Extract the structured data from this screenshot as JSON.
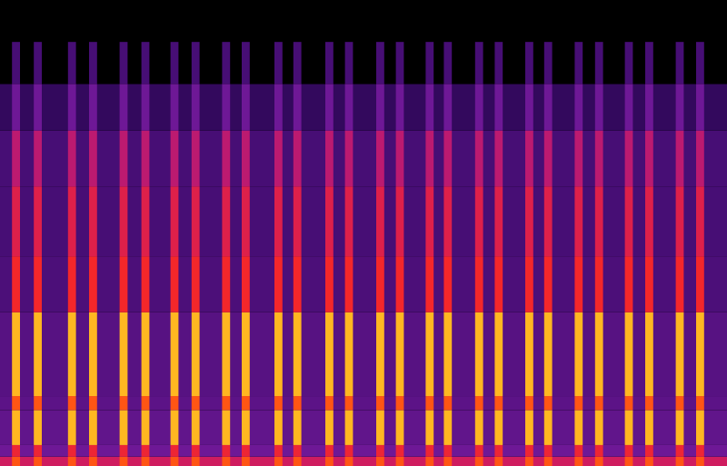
{
  "chart_data": {
    "type": "spectrogram",
    "tick_labels": false,
    "xlim": [
      0,
      1
    ],
    "ylim": [
      0,
      1
    ],
    "x": [
      0.022,
      0.052,
      0.099,
      0.128,
      0.17,
      0.2,
      0.24,
      0.269,
      0.311,
      0.338,
      0.383,
      0.409,
      0.453,
      0.48,
      0.523,
      0.55,
      0.591,
      0.616,
      0.659,
      0.686,
      0.728,
      0.754,
      0.796,
      0.824,
      0.865,
      0.893,
      0.935,
      0.963
    ],
    "bands": [
      {
        "from": 0,
        "to": 0.02,
        "pulse": 0.8,
        "background": 0.62
      },
      {
        "from": 0.02,
        "to": 0.045,
        "pulse": 0.7,
        "background": 0.45
      },
      {
        "from": 0.045,
        "to": 0.12,
        "pulse": 0.93,
        "background": 0.4
      },
      {
        "from": 0.12,
        "to": 0.15,
        "pulse": 0.8,
        "background": 0.38
      },
      {
        "from": 0.15,
        "to": 0.33,
        "pulse": 0.93,
        "background": 0.36
      },
      {
        "from": 0.33,
        "to": 0.45,
        "pulse": 0.72,
        "background": 0.32
      },
      {
        "from": 0.45,
        "to": 0.6,
        "pulse": 0.66,
        "background": 0.3
      },
      {
        "from": 0.6,
        "to": 0.72,
        "pulse": 0.58,
        "background": 0.3
      },
      {
        "from": 0.72,
        "to": 0.82,
        "pulse": 0.45,
        "background": 0.22
      },
      {
        "from": 0.82,
        "to": 0.91,
        "pulse": 0.3,
        "background": 0
      }
    ]
  }
}
